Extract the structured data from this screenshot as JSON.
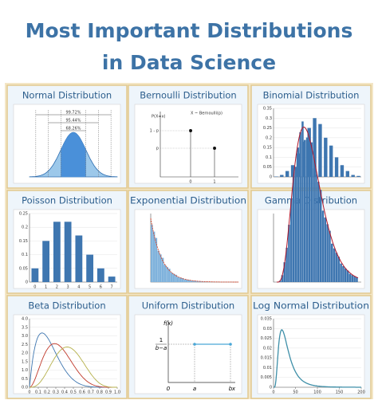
{
  "title": {
    "line1": "Most Important Distributions",
    "line2": "in Data Science"
  },
  "panels": [
    {
      "title": "Normal Distribution",
      "labels": [
        "99.72%",
        "95.44%",
        "68.26%"
      ]
    },
    {
      "title": "Bernoulli Distribution",
      "labels": [
        "X ~ Bernoulli(p)",
        "P(X=x)",
        "1 - p",
        "p"
      ],
      "xticks": [
        0,
        1
      ]
    },
    {
      "title": "Binomial Distribution",
      "chart": {
        "type": "bar",
        "values": [
          0.002,
          0.01,
          0.03,
          0.06,
          0.12,
          0.18,
          0.25,
          0.3,
          0.27,
          0.2,
          0.16,
          0.1,
          0.06,
          0.03,
          0.01,
          0.005
        ],
        "ylim": [
          0,
          0.35
        ],
        "yticks": [
          0,
          0.05,
          0.1,
          0.15,
          0.2,
          0.25,
          0.3,
          0.35
        ]
      }
    },
    {
      "title": "Poisson Distribution",
      "chart": {
        "type": "bar",
        "categories": [
          0,
          1,
          2,
          3,
          4,
          5,
          6,
          7
        ],
        "values": [
          0.05,
          0.15,
          0.22,
          0.22,
          0.17,
          0.1,
          0.05,
          0.02
        ],
        "ylim": [
          0,
          0.25
        ],
        "yticks": [
          0,
          0.05,
          0.1,
          0.15,
          0.2,
          0.25
        ]
      }
    },
    {
      "title": "Exponential Distribution"
    },
    {
      "title": "Gamma Distribution"
    },
    {
      "title": "Beta Distribution",
      "chart": {
        "type": "line",
        "ylim": [
          0,
          4
        ],
        "yticks": [
          {
            "value": 0,
            "label": "0.0"
          },
          {
            "value": 0.5,
            "label": "0.5"
          },
          {
            "value": 1,
            "label": "1.0"
          },
          {
            "value": 1.5,
            "label": "1.5"
          },
          {
            "value": 2,
            "label": "2.0"
          },
          {
            "value": 2.5,
            "label": "2.5"
          },
          {
            "value": 3,
            "label": "3.0"
          },
          {
            "value": 3.5,
            "label": "3.5"
          },
          {
            "value": 4,
            "label": "4.0"
          }
        ],
        "xlim": [
          0,
          1
        ],
        "xticks": [
          0,
          0.1,
          0.2,
          0.3,
          0.4,
          0.5,
          0.6,
          0.7,
          0.8,
          0.9,
          {
            "value": 1,
            "label": "1.0"
          }
        ]
      }
    },
    {
      "title": "Uniform Distribution",
      "labels": [
        "f(x)",
        "1",
        "b−a",
        "0",
        "a",
        "b",
        "x"
      ]
    },
    {
      "title": "Log Normal Distribution",
      "chart": {
        "type": "line",
        "ylim": [
          0,
          0.035
        ],
        "yticks": [
          0,
          0.005,
          0.01,
          0.015,
          0.02,
          0.025,
          0.03,
          0.035
        ],
        "xlim": [
          0,
          200
        ],
        "xticks": [
          0,
          50,
          100,
          150,
          200
        ]
      }
    }
  ]
}
